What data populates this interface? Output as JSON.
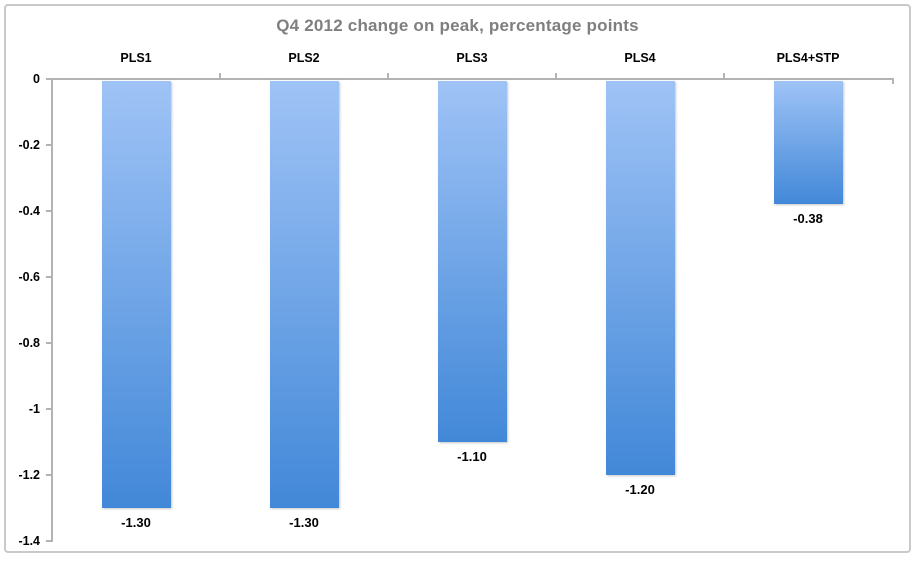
{
  "window": {
    "background": "#ffffff",
    "border_color": "#c9c9c9"
  },
  "chart_data": {
    "type": "bar",
    "title": "Q4 2012 change on peak, percentage points",
    "title_color": "#7f7f7f",
    "categories": [
      "PLS1",
      "PLS2",
      "PLS3",
      "PLS4",
      "PLS4+STP"
    ],
    "values": [
      -1.3,
      -1.3,
      -1.1,
      -1.2,
      -0.38
    ],
    "data_labels": [
      "-1.30",
      "-1.30",
      "-1.10",
      "-1.20",
      "-0.38"
    ],
    "xlabel": "",
    "ylabel": "",
    "ylim": [
      -1.4,
      0
    ],
    "y_ticks": [
      {
        "label": "0",
        "value": 0
      },
      {
        "label": "-0.2",
        "value": -0.2
      },
      {
        "label": "-0.4",
        "value": -0.4
      },
      {
        "label": "-0.6",
        "value": -0.6
      },
      {
        "label": "-0.8",
        "value": -0.8
      },
      {
        "label": "-1",
        "value": -1
      },
      {
        "label": "-1.2",
        "value": -1.2
      },
      {
        "label": "-1.4",
        "value": -1.4
      }
    ],
    "grid": false,
    "legend": "none",
    "category_labels_position": "top",
    "axis_color": "#b3b3b3",
    "label_color": "#000000",
    "bar_gradient_top": "#9fc3f6",
    "bar_gradient_bottom": "#4288d8"
  }
}
